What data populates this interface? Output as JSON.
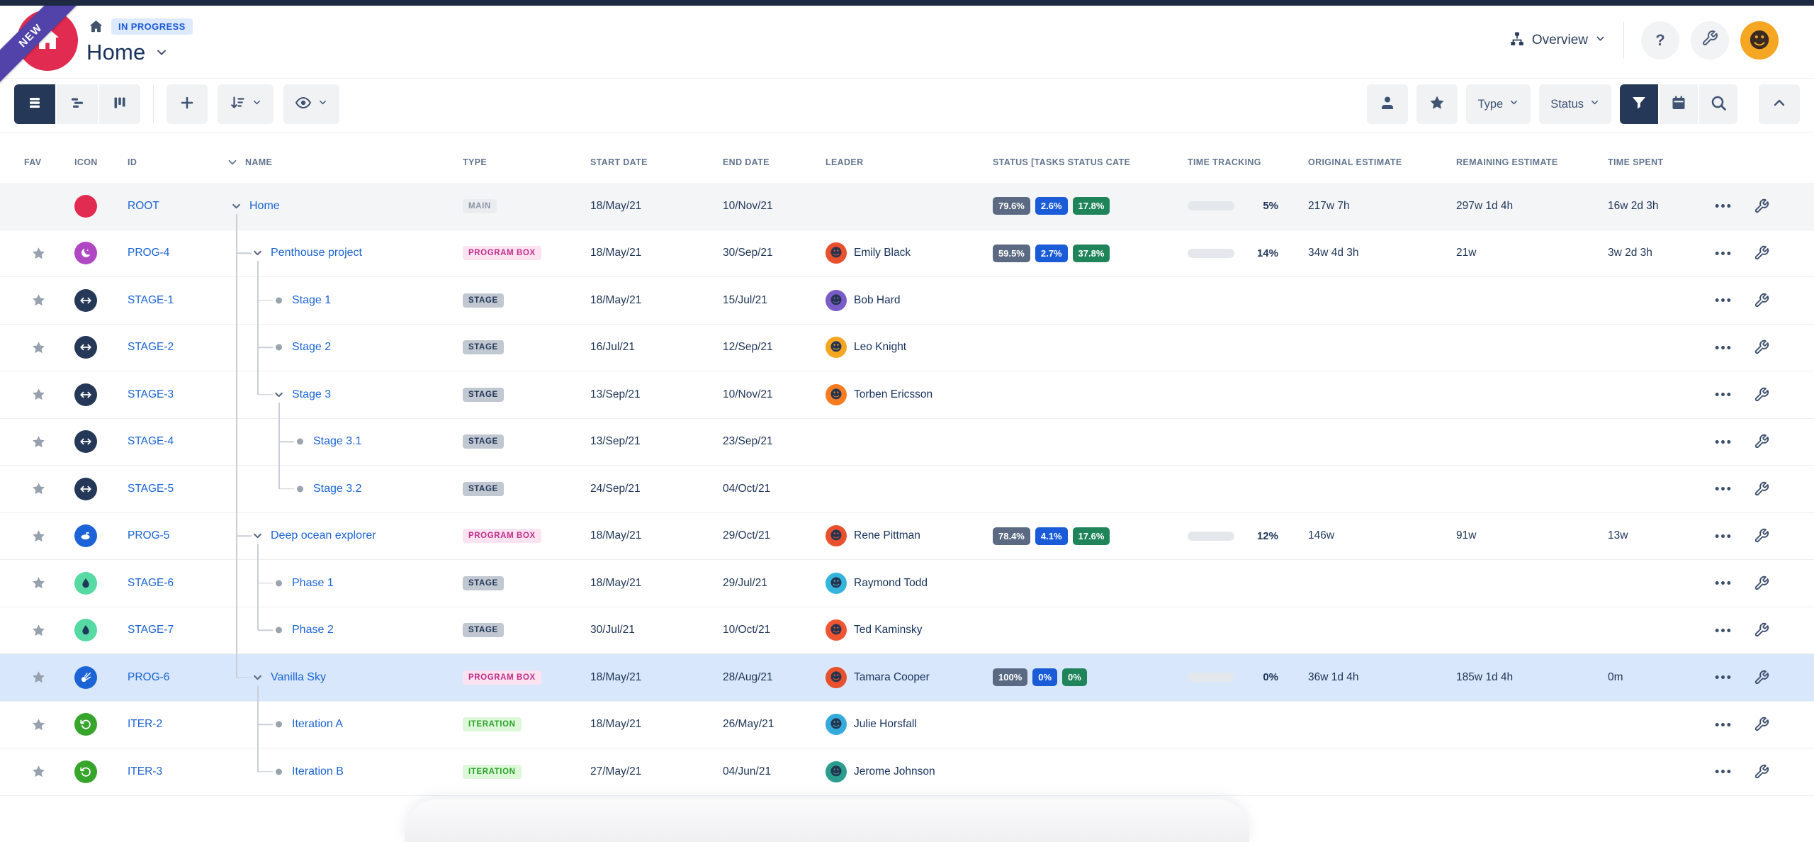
{
  "page": {
    "ribbon": "NEW",
    "status_badge": "IN PROGRESS",
    "title": "Home"
  },
  "header": {
    "overview_label": "Overview",
    "help_label": "?"
  },
  "toolbar": {
    "type_label": "Type",
    "status_label": "Status"
  },
  "table": {
    "columns": [
      "FAV",
      "ICON",
      "ID",
      "NAME",
      "TYPE",
      "START DATE",
      "END DATE",
      "LEADER",
      "STATUS [TASKS STATUS CATE",
      "TIME TRACKING",
      "ORIGINAL ESTIMATE",
      "REMAINING ESTIMATE",
      "TIME SPENT"
    ]
  },
  "colors": {
    "accent_blue": "#1b63d6",
    "selected_row": "#d8e7fb",
    "status_gray": "#5b6a82",
    "status_blue": "#1a5cd8",
    "status_green": "#1f845a"
  },
  "rows": [
    {
      "fav": false,
      "icon": {
        "name": "home",
        "bg": "#e22b50"
      },
      "id": "ROOT",
      "name": "Home",
      "type": "MAIN",
      "type_style": "main",
      "start": "18/May/21",
      "end": "10/Nov/21",
      "leader": null,
      "status": [
        "79.6%",
        "2.6%",
        "17.8%"
      ],
      "tracking": {
        "percent": 5,
        "label": "5%"
      },
      "original": "217w 7h",
      "remaining": "297w 1d 4h",
      "spent": "16w 2d 3h",
      "shaded": true,
      "selected": false,
      "tree": {
        "depth": 0,
        "through": [],
        "elbow": null,
        "marker": "chevron",
        "stub": true
      }
    },
    {
      "fav": true,
      "icon": {
        "name": "moon",
        "bg": "#b048c4"
      },
      "id": "PROG-4",
      "name": "Penthouse project",
      "type": "PROGRAM BOX",
      "type_style": "program",
      "start": "18/May/21",
      "end": "30/Sep/21",
      "leader": {
        "name": "Emily Black",
        "color": "#e8502e"
      },
      "status": [
        "59.5%",
        "2.7%",
        "37.8%"
      ],
      "tracking": {
        "percent": 14,
        "label": "14%"
      },
      "original": "34w 4d 3h",
      "remaining": "21w",
      "spent": "3w 2d 3h",
      "tree": {
        "depth": 1,
        "through": [
          0
        ],
        "elbow": null,
        "marker": "chevron",
        "stub": true
      }
    },
    {
      "fav": true,
      "icon": {
        "name": "arrows",
        "bg": "#253858"
      },
      "id": "STAGE-1",
      "name": "Stage 1",
      "type": "STAGE",
      "type_style": "stage",
      "start": "18/May/21",
      "end": "15/Jul/21",
      "leader": {
        "name": "Bob Hard",
        "color": "#7a5cc9"
      },
      "tree": {
        "depth": 2,
        "through": [
          0,
          1
        ],
        "elbow": null,
        "marker": "dot"
      }
    },
    {
      "fav": true,
      "icon": {
        "name": "arrows",
        "bg": "#253858"
      },
      "id": "STAGE-2",
      "name": "Stage 2",
      "type": "STAGE",
      "type_style": "stage",
      "start": "16/Jul/21",
      "end": "12/Sep/21",
      "leader": {
        "name": "Leo Knight",
        "color": "#f5a623"
      },
      "tree": {
        "depth": 2,
        "through": [
          0,
          1
        ],
        "elbow": null,
        "marker": "dot"
      }
    },
    {
      "fav": true,
      "icon": {
        "name": "arrows",
        "bg": "#253858"
      },
      "id": "STAGE-3",
      "name": "Stage 3",
      "type": "STAGE",
      "type_style": "stage",
      "start": "13/Sep/21",
      "end": "10/Nov/21",
      "leader": {
        "name": "Torben Ericsson",
        "color": "#f57c23"
      },
      "tree": {
        "depth": 2,
        "through": [
          0
        ],
        "elbow": 1,
        "marker": "chevron",
        "stub": true
      }
    },
    {
      "fav": true,
      "icon": {
        "name": "arrows",
        "bg": "#253858"
      },
      "id": "STAGE-4",
      "name": "Stage 3.1",
      "type": "STAGE",
      "type_style": "stage",
      "start": "13/Sep/21",
      "end": "23/Sep/21",
      "leader": null,
      "tree": {
        "depth": 3,
        "through": [
          0,
          2
        ],
        "elbow": null,
        "marker": "dot"
      }
    },
    {
      "fav": true,
      "icon": {
        "name": "arrows",
        "bg": "#253858"
      },
      "id": "STAGE-5",
      "name": "Stage 3.2",
      "type": "STAGE",
      "type_style": "stage",
      "start": "24/Sep/21",
      "end": "04/Oct/21",
      "leader": null,
      "tree": {
        "depth": 3,
        "through": [
          0
        ],
        "elbow": 2,
        "marker": "dot"
      }
    },
    {
      "fav": true,
      "icon": {
        "name": "sub",
        "bg": "#1b63d6"
      },
      "id": "PROG-5",
      "name": "Deep ocean explorer",
      "type": "PROGRAM BOX",
      "type_style": "program",
      "start": "18/May/21",
      "end": "29/Oct/21",
      "leader": {
        "name": "Rene Pittman",
        "color": "#e8502e"
      },
      "status": [
        "78.4%",
        "4.1%",
        "17.6%"
      ],
      "tracking": {
        "percent": 12,
        "label": "12%"
      },
      "original": "146w",
      "remaining": "91w",
      "spent": "13w",
      "tree": {
        "depth": 1,
        "through": [
          0
        ],
        "elbow": null,
        "marker": "chevron",
        "stub": true
      }
    },
    {
      "fav": true,
      "icon": {
        "name": "drop",
        "bg": "#57d9a3",
        "fg": "#1d3b57"
      },
      "id": "STAGE-6",
      "name": "Phase 1",
      "type": "STAGE",
      "type_style": "stage",
      "start": "18/May/21",
      "end": "29/Jul/21",
      "leader": {
        "name": "Raymond Todd",
        "color": "#35b5dc"
      },
      "tree": {
        "depth": 2,
        "through": [
          0,
          1
        ],
        "elbow": null,
        "marker": "dot"
      }
    },
    {
      "fav": true,
      "icon": {
        "name": "drop",
        "bg": "#57d9a3",
        "fg": "#1d3b57"
      },
      "id": "STAGE-7",
      "name": "Phase 2",
      "type": "STAGE",
      "type_style": "stage",
      "start": "30/Jul/21",
      "end": "10/Oct/21",
      "leader": {
        "name": "Ted Kaminsky",
        "color": "#ef5533"
      },
      "tree": {
        "depth": 2,
        "through": [
          0
        ],
        "elbow": 1,
        "marker": "dot"
      }
    },
    {
      "fav": true,
      "icon": {
        "name": "comet",
        "bg": "#1b63d6"
      },
      "id": "PROG-6",
      "name": "Vanilla Sky",
      "type": "PROGRAM BOX",
      "type_style": "program",
      "start": "18/May/21",
      "end": "28/Aug/21",
      "leader": {
        "name": "Tamara Cooper",
        "color": "#e8502e"
      },
      "status": [
        "100%",
        "0%",
        "0%"
      ],
      "tracking": {
        "percent": 0,
        "label": "0%"
      },
      "original": "36w 1d 4h",
      "remaining": "185w 1d 4h",
      "spent": "0m",
      "selected": true,
      "tree": {
        "depth": 1,
        "through": [],
        "elbow": 0,
        "marker": "chevron",
        "stub": true
      }
    },
    {
      "fav": true,
      "icon": {
        "name": "loop",
        "bg": "#37a52c"
      },
      "id": "ITER-2",
      "name": "Iteration A",
      "type": "ITERATION",
      "type_style": "iteration",
      "start": "18/May/21",
      "end": "26/May/21",
      "leader": {
        "name": "Julie Horsfall",
        "color": "#35aadc"
      },
      "tree": {
        "depth": 2,
        "through": [
          1
        ],
        "elbow": null,
        "marker": "dot"
      }
    },
    {
      "fav": true,
      "icon": {
        "name": "loop",
        "bg": "#37a52c"
      },
      "id": "ITER-3",
      "name": "Iteration B",
      "type": "ITERATION",
      "type_style": "iteration",
      "start": "27/May/21",
      "end": "04/Jun/21",
      "leader": {
        "name": "Jerome Johnson",
        "color": "#2a9d8f"
      },
      "tree": {
        "depth": 2,
        "through": [],
        "elbow": 1,
        "marker": "dot"
      }
    }
  ]
}
